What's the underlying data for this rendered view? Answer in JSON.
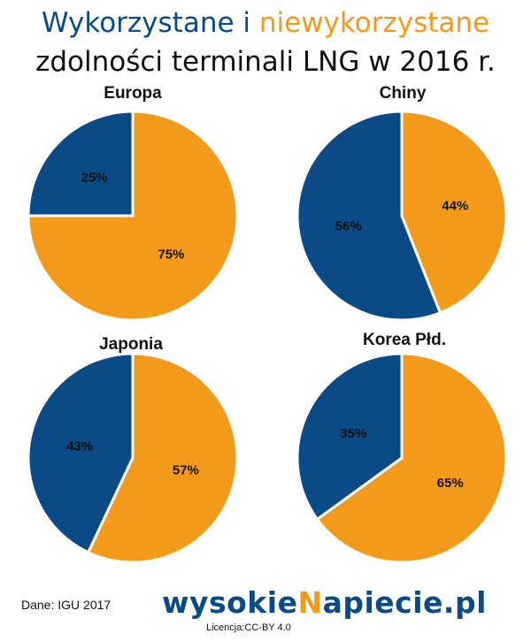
{
  "title": {
    "line1_part1": "Wykorzystane i ",
    "line1_part2": "niewykorzystane",
    "line2": "zdolności terminali LNG w 2016 r."
  },
  "colors": {
    "used": "#0a4a86",
    "unused": "#f39a1b"
  },
  "chart_data": [
    {
      "type": "pie",
      "title": "Europa",
      "slices": [
        {
          "label": "25%",
          "value": 25,
          "color": "#0a4a86"
        },
        {
          "label": "75%",
          "value": 75,
          "color": "#f39a1b"
        }
      ]
    },
    {
      "type": "pie",
      "title": "Chiny",
      "slices": [
        {
          "label": "56%",
          "value": 56,
          "color": "#0a4a86"
        },
        {
          "label": "44%",
          "value": 44,
          "color": "#f39a1b"
        }
      ]
    },
    {
      "type": "pie",
      "title": "Japonia",
      "slices": [
        {
          "label": "43%",
          "value": 43,
          "color": "#0a4a86"
        },
        {
          "label": "57%",
          "value": 57,
          "color": "#f39a1b"
        }
      ]
    },
    {
      "type": "pie",
      "title": "Korea Płd.",
      "slices": [
        {
          "label": "35%",
          "value": 35,
          "color": "#0a4a86"
        },
        {
          "label": "65%",
          "value": 65,
          "color": "#f39a1b"
        }
      ]
    }
  ],
  "footer": {
    "source": "Dane: IGU 2017",
    "logo_part1": "wysokie",
    "logo_part2": "N",
    "logo_part3": "apiecie.pl",
    "license": "Licencja:CC-BY 4.0"
  }
}
